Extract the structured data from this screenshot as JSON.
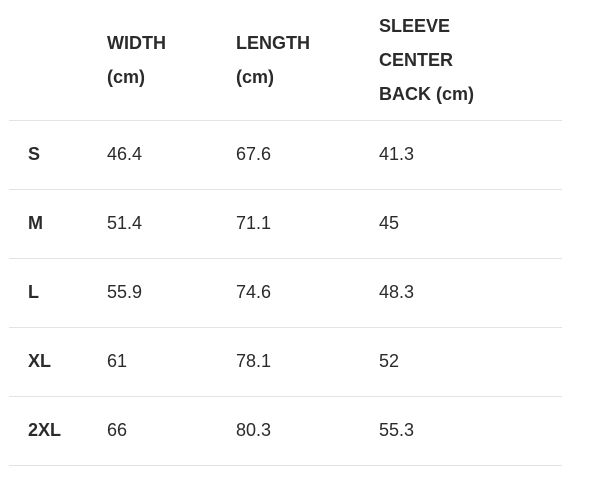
{
  "headers": [
    "",
    "WIDTH (cm)",
    "LENGTH (cm)",
    "SLEEVE CENTER BACK (cm)"
  ],
  "rows": [
    [
      "S",
      "46.4",
      "67.6",
      "41.3"
    ],
    [
      "M",
      "51.4",
      "71.1",
      "45"
    ],
    [
      "L",
      "55.9",
      "74.6",
      "48.3"
    ],
    [
      "XL",
      "61",
      "78.1",
      "52"
    ],
    [
      "2XL",
      "66",
      "80.3",
      "55.3"
    ]
  ]
}
